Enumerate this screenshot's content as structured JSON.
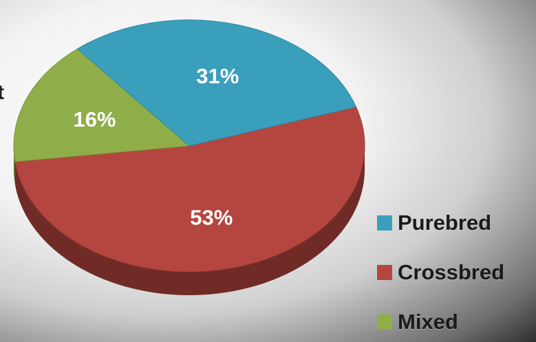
{
  "partial_text": "t",
  "chart_data": {
    "type": "pie",
    "title": "",
    "slices": [
      {
        "label": "Purebred",
        "value": 31,
        "display": "31%",
        "color": "#3a9fba"
      },
      {
        "label": "Crossbred",
        "value": 53,
        "display": "53%",
        "color": "#b5463f"
      },
      {
        "label": "Mixed",
        "value": 16,
        "display": "16%",
        "color": "#8fae49"
      }
    ],
    "legend_position": "bottom-right",
    "three_d": true
  }
}
